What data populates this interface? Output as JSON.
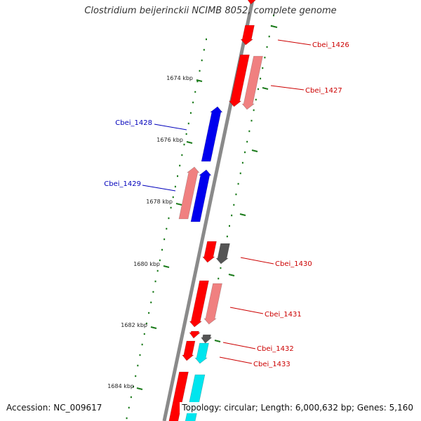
{
  "title": "Clostridium beijerinckii NCIMB 8052, complete genome",
  "footer": {
    "accession": "Accession: NC_009617",
    "summary": "Topology: circular; Length: 6,000,632 bp; Genes: 5,160"
  },
  "colors": {
    "backbone": "#8a8a8a",
    "tick_dots": "#1a7a1a",
    "forward_strand_label": "#cc0000",
    "reverse_strand_label": "#0000bb",
    "gene_red": "#ff0000",
    "gene_pink": "#f08080",
    "gene_blue": "#0000ee",
    "gene_gray": "#555555",
    "gene_cyan": "#00e5ee"
  },
  "ticks": [
    {
      "label": "1674 kbp"
    },
    {
      "label": "1676 kbp"
    },
    {
      "label": "1678 kbp"
    },
    {
      "label": "1680 kbp"
    },
    {
      "label": "1682 kbp"
    },
    {
      "label": "1684 kbp"
    }
  ],
  "gene_labels": [
    {
      "text": "Cbei_1426",
      "strand": "forward"
    },
    {
      "text": "Cbei_1427",
      "strand": "forward"
    },
    {
      "text": "Cbei_1428",
      "strand": "reverse"
    },
    {
      "text": "Cbei_1429",
      "strand": "reverse"
    },
    {
      "text": "Cbei_1430",
      "strand": "forward"
    },
    {
      "text": "Cbei_1431",
      "strand": "forward"
    },
    {
      "text": "Cbei_1432",
      "strand": "forward"
    },
    {
      "text": "Cbei_1433",
      "strand": "forward"
    }
  ]
}
